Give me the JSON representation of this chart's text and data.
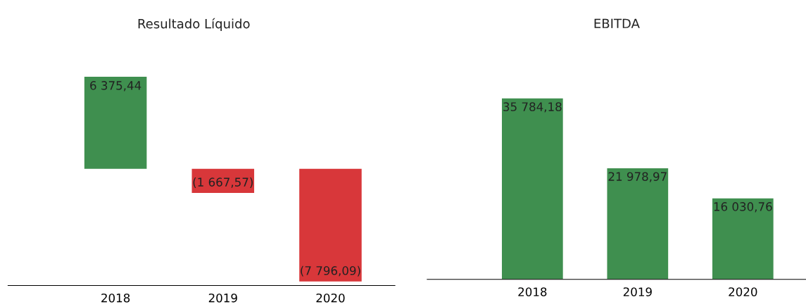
{
  "chart_data": [
    {
      "type": "bar",
      "title": "Resultado Líquido",
      "categories": [
        "2018",
        "2019",
        "2020"
      ],
      "values": [
        6375.44,
        -1667.57,
        -7796.09
      ],
      "colors": [
        "#3f8f4f",
        "#d8373a",
        "#d8373a"
      ],
      "value_labels": [
        "6 375,44",
        "(1 667,57)",
        "(7 796,09)"
      ]
    },
    {
      "type": "bar",
      "title": "EBITDA",
      "categories": [
        "2018",
        "2019",
        "2020"
      ],
      "values": [
        35784.18,
        21978.97,
        16030.76
      ],
      "colors": [
        "#3f8f4f",
        "#3f8f4f",
        "#3f8f4f"
      ],
      "value_labels": [
        "35 784,18",
        "21 978,97",
        "16 030,76"
      ]
    }
  ]
}
